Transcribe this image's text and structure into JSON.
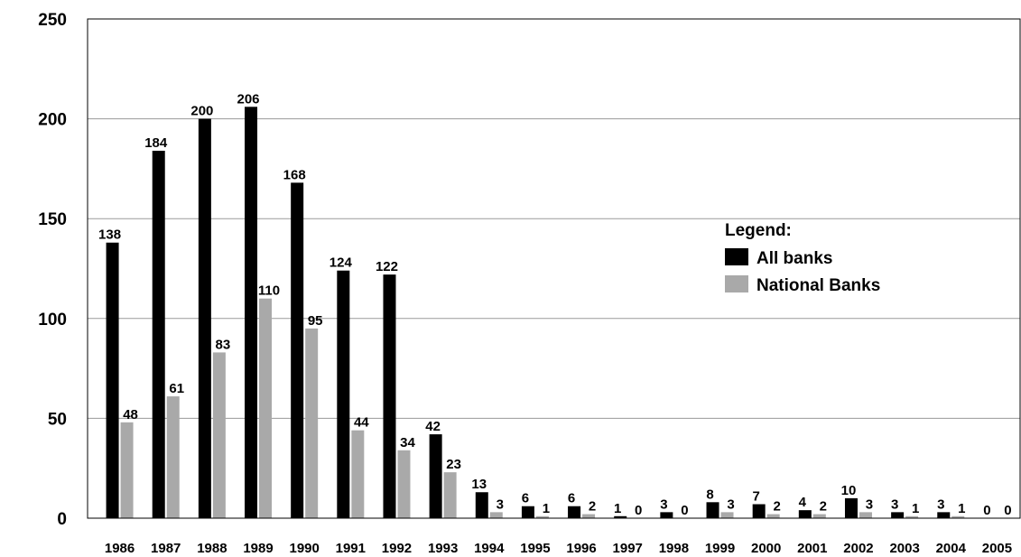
{
  "chart_data": {
    "type": "bar",
    "title": "",
    "xlabel": "",
    "ylabel": "",
    "categories": [
      "1986",
      "1987",
      "1988",
      "1989",
      "1990",
      "1991",
      "1992",
      "1993",
      "1994",
      "1995",
      "1996",
      "1997",
      "1998",
      "1999",
      "2000",
      "2001",
      "2002",
      "2003",
      "2004",
      "2005"
    ],
    "series": [
      {
        "name": "All banks",
        "color": "#000000",
        "values": [
          138,
          184,
          200,
          206,
          168,
          124,
          122,
          42,
          13,
          6,
          6,
          1,
          3,
          8,
          7,
          4,
          10,
          3,
          3,
          0
        ]
      },
      {
        "name": "National Banks",
        "color": "#a9a9a9",
        "values": [
          48,
          61,
          83,
          110,
          95,
          44,
          34,
          23,
          3,
          1,
          2,
          0,
          0,
          3,
          2,
          2,
          3,
          1,
          1,
          0
        ]
      }
    ],
    "ylim": [
      0,
      250
    ],
    "yticks": [
      "0",
      "50",
      "100",
      "150",
      "200",
      "250"
    ],
    "grid": true,
    "legend": {
      "title": "Legend:",
      "placement": "right"
    }
  }
}
